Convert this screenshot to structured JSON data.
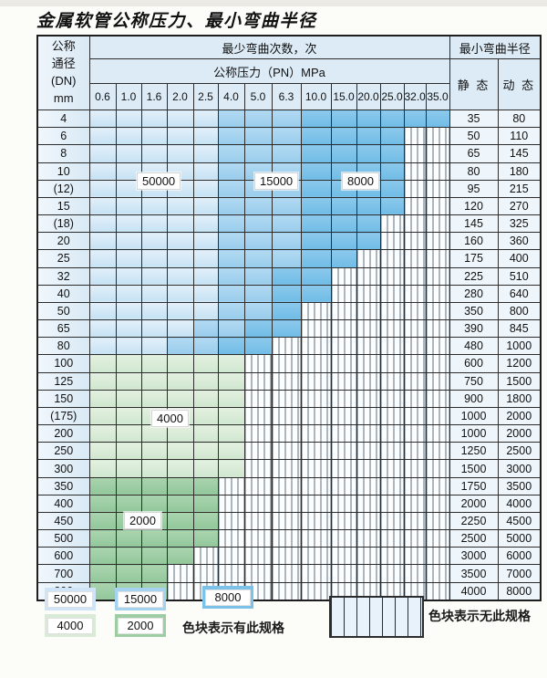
{
  "title": "金属软管公称压力、最小弯曲半径",
  "table": {
    "dn_header_lines": [
      "公称",
      "通径",
      "(DN)",
      "mm"
    ],
    "cycles_header": "最少弯曲次数，次",
    "pressure_header": "公称压力（PN）MPa",
    "radius_header": "最小弯曲半径",
    "static_header": "静 态",
    "dynamic_header": "动 态",
    "pressure_columns": [
      "0.6",
      "1.0",
      "1.6",
      "2.0",
      "2.5",
      "4.0",
      "5.0",
      "6.3",
      "10.0",
      "15.0",
      "20.0",
      "25.0",
      "32.0",
      "35.0"
    ],
    "rows": [
      {
        "dn": "4",
        "static": "35",
        "dynamic": "80",
        "bands": [
          [
            "50000",
            5
          ],
          [
            "15000",
            3
          ],
          [
            "8000",
            6
          ]
        ]
      },
      {
        "dn": "6",
        "static": "50",
        "dynamic": "110",
        "bands": [
          [
            "50000",
            5
          ],
          [
            "15000",
            3
          ],
          [
            "8000",
            4
          ],
          [
            "none",
            2
          ]
        ]
      },
      {
        "dn": "8",
        "static": "65",
        "dynamic": "145",
        "bands": [
          [
            "50000",
            5
          ],
          [
            "15000",
            3
          ],
          [
            "8000",
            4
          ],
          [
            "none",
            2
          ]
        ]
      },
      {
        "dn": "10",
        "static": "80",
        "dynamic": "180",
        "bands": [
          [
            "50000",
            5
          ],
          [
            "15000",
            3
          ],
          [
            "8000",
            4
          ],
          [
            "none",
            2
          ]
        ]
      },
      {
        "dn": "(12)",
        "static": "95",
        "dynamic": "215",
        "bands": [
          [
            "50000",
            5
          ],
          [
            "15000",
            3
          ],
          [
            "8000",
            4
          ],
          [
            "none",
            2
          ]
        ]
      },
      {
        "dn": "15",
        "static": "120",
        "dynamic": "270",
        "bands": [
          [
            "50000",
            5
          ],
          [
            "15000",
            3
          ],
          [
            "8000",
            4
          ],
          [
            "none",
            2
          ]
        ]
      },
      {
        "dn": "(18)",
        "static": "145",
        "dynamic": "325",
        "bands": [
          [
            "50000",
            5
          ],
          [
            "15000",
            3
          ],
          [
            "8000",
            3
          ],
          [
            "none",
            3
          ]
        ]
      },
      {
        "dn": "20",
        "static": "160",
        "dynamic": "360",
        "bands": [
          [
            "50000",
            5
          ],
          [
            "15000",
            3
          ],
          [
            "8000",
            3
          ],
          [
            "none",
            3
          ]
        ]
      },
      {
        "dn": "25",
        "static": "175",
        "dynamic": "400",
        "bands": [
          [
            "50000",
            5
          ],
          [
            "15000",
            3
          ],
          [
            "8000",
            2
          ],
          [
            "none",
            4
          ]
        ]
      },
      {
        "dn": "32",
        "static": "225",
        "dynamic": "510",
        "bands": [
          [
            "50000",
            5
          ],
          [
            "15000",
            2
          ],
          [
            "8000",
            2
          ],
          [
            "none",
            5
          ]
        ]
      },
      {
        "dn": "40",
        "static": "280",
        "dynamic": "640",
        "bands": [
          [
            "50000",
            5
          ],
          [
            "15000",
            2
          ],
          [
            "8000",
            2
          ],
          [
            "none",
            5
          ]
        ]
      },
      {
        "dn": "50",
        "static": "350",
        "dynamic": "800",
        "bands": [
          [
            "50000",
            5
          ],
          [
            "15000",
            2
          ],
          [
            "8000",
            1
          ],
          [
            "none",
            6
          ]
        ]
      },
      {
        "dn": "65",
        "static": "390",
        "dynamic": "845",
        "bands": [
          [
            "50000",
            4
          ],
          [
            "15000",
            2
          ],
          [
            "8000",
            2
          ],
          [
            "none",
            6
          ]
        ]
      },
      {
        "dn": "80",
        "static": "480",
        "dynamic": "1000",
        "bands": [
          [
            "50000",
            3
          ],
          [
            "15000",
            2
          ],
          [
            "8000",
            2
          ],
          [
            "none",
            7
          ]
        ]
      },
      {
        "dn": "100",
        "static": "600",
        "dynamic": "1200",
        "bands": [
          [
            "4000",
            6
          ],
          [
            "none",
            8
          ]
        ]
      },
      {
        "dn": "125",
        "static": "750",
        "dynamic": "1500",
        "bands": [
          [
            "4000",
            6
          ],
          [
            "none",
            8
          ]
        ]
      },
      {
        "dn": "150",
        "static": "900",
        "dynamic": "1800",
        "bands": [
          [
            "4000",
            6
          ],
          [
            "none",
            8
          ]
        ]
      },
      {
        "dn": "(175)",
        "static": "1000",
        "dynamic": "2000",
        "bands": [
          [
            "4000",
            6
          ],
          [
            "none",
            8
          ]
        ]
      },
      {
        "dn": "200",
        "static": "1000",
        "dynamic": "2000",
        "bands": [
          [
            "4000",
            6
          ],
          [
            "none",
            8
          ]
        ]
      },
      {
        "dn": "250",
        "static": "1250",
        "dynamic": "2500",
        "bands": [
          [
            "4000",
            6
          ],
          [
            "none",
            8
          ]
        ]
      },
      {
        "dn": "300",
        "static": "1500",
        "dynamic": "3000",
        "bands": [
          [
            "4000",
            6
          ],
          [
            "none",
            8
          ]
        ]
      },
      {
        "dn": "350",
        "static": "1750",
        "dynamic": "3500",
        "bands": [
          [
            "2000",
            5
          ],
          [
            "none",
            9
          ]
        ]
      },
      {
        "dn": "400",
        "static": "2000",
        "dynamic": "4000",
        "bands": [
          [
            "2000",
            5
          ],
          [
            "none",
            9
          ]
        ]
      },
      {
        "dn": "450",
        "static": "2250",
        "dynamic": "4500",
        "bands": [
          [
            "2000",
            5
          ],
          [
            "none",
            9
          ]
        ]
      },
      {
        "dn": "500",
        "static": "2500",
        "dynamic": "5000",
        "bands": [
          [
            "2000",
            5
          ],
          [
            "none",
            9
          ]
        ]
      },
      {
        "dn": "600",
        "static": "3000",
        "dynamic": "6000",
        "bands": [
          [
            "2000",
            4
          ],
          [
            "none",
            10
          ]
        ]
      },
      {
        "dn": "700",
        "static": "3500",
        "dynamic": "7000",
        "bands": [
          [
            "2000",
            3
          ],
          [
            "none",
            11
          ]
        ]
      },
      {
        "dn": "800",
        "static": "4000",
        "dynamic": "8000",
        "bands": [
          [
            "2000",
            3
          ],
          [
            "none",
            11
          ]
        ]
      }
    ]
  },
  "legend": {
    "items": [
      {
        "value": "50000",
        "color": "#cfe4f6"
      },
      {
        "value": "15000",
        "color": "#a4d2ef"
      },
      {
        "value": "8000",
        "color": "#7cc1e8"
      },
      {
        "value": "4000",
        "color": "#d9ebd7"
      },
      {
        "value": "2000",
        "color": "#9ecda4"
      }
    ],
    "has_spec_text": "色块表示有此规格",
    "no_spec_text": "色块表示无此规格"
  },
  "colors": {
    "cell_none_stripe": "#5f6e78",
    "header_bg": "#dcebf6",
    "table_border": "#1e1e1e"
  }
}
